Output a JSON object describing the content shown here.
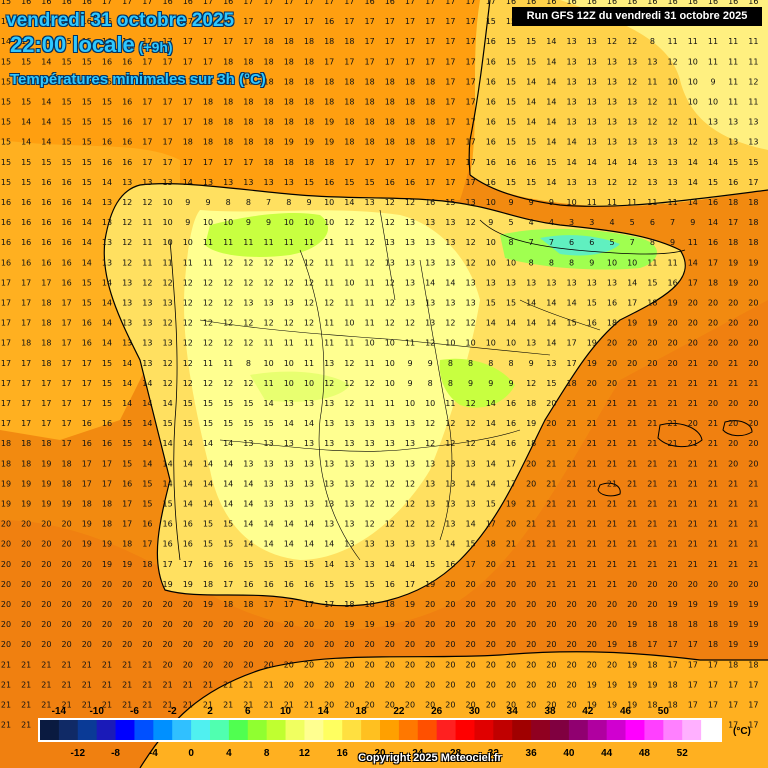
{
  "header": {
    "date_line": "vendredi 31 octobre 2025",
    "time_line": "22:00 locale",
    "time_offset": "(+9h)",
    "subtitle": "Températures minimales sur 3h (°C)",
    "run_info": "Run GFS 12Z du vendredi 31 octobre 2025"
  },
  "legend": {
    "unit": "(°C)",
    "colors": [
      "#0a1a40",
      "#102a66",
      "#0a3a96",
      "#1a1ab8",
      "#0000ff",
      "#0050ff",
      "#0090ff",
      "#30c0ff",
      "#50f0f0",
      "#50ffb0",
      "#50ff50",
      "#90ff30",
      "#c0ff30",
      "#f0ff60",
      "#ffff90",
      "#ffff60",
      "#ffe040",
      "#ffc020",
      "#ffa000",
      "#ff7800",
      "#ff5000",
      "#ff2020",
      "#ff0000",
      "#e00000",
      "#c00000",
      "#a00000",
      "#900020",
      "#800040",
      "#900070",
      "#b000a0",
      "#d000d0",
      "#ff00ff",
      "#ff40ff",
      "#ff80ff",
      "#ffb0ff",
      "#ffffff"
    ],
    "labels_top": [
      "-14",
      "-10",
      "-6",
      "-2",
      "2",
      "6",
      "10",
      "14",
      "18",
      "22",
      "26",
      "30",
      "34",
      "38",
      "42",
      "46",
      "50"
    ],
    "labels_bottom": [
      "-12",
      "-8",
      "-4",
      "0",
      "4",
      "8",
      "12",
      "16",
      "20",
      "24",
      "28",
      "32",
      "36",
      "40",
      "44",
      "48",
      "52"
    ]
  },
  "grid_rows": [
    "15 16 16 16 16 17 17 17 16 16 17 16 17 17 17 17 17 17 16 16 17 17 17 17 17 16 16 16 16 16 16 16 16 16 16 16 16 16",
    "14 15 15 16 16 16 17 17 17 17 16 17 17 17 17 17 16 17 17 17 17 17 17 17 15 15 15 15 14 14 12 11 10 8 11 11 12 11",
    "14 15 15 15 15 16 16 17 17 17 17 17 17 18 18 18 18 18 17 17 17 17 17 17 16 15 15 14 13 13 12 12 8 11 11 11 11 11",
    "15 15 14 15 15 16 16 17 17 17 17 18 18 18 18 18 17 17 17 17 17 17 17 17 16 15 15 14 13 13 13 13 13 12 10 11 11 11",
    "15 15 14 15 15 15 16 16 17 17 18 18 18 18 18 18 18 18 18 18 18 18 17 17 16 15 14 14 13 13 13 12 11 10 10 9 11 12",
    "15 15 14 15 15 15 16 17 17 17 18 18 18 18 18 18 18 18 18 18 18 18 17 17 16 15 14 14 13 13 13 13 12 11 10 10 11 11",
    "15 14 14 15 15 15 16 17 17 17 18 18 18 18 18 18 19 18 18 18 18 18 17 17 16 15 14 14 13 13 13 13 12 12 11 13 13 13",
    "15 14 14 15 15 16 16 17 17 18 18 18 18 18 19 19 19 18 18 18 18 18 17 17 16 15 15 14 14 13 13 13 13 13 12 13 13 13",
    "15 15 15 15 15 16 16 17 17 17 17 17 17 18 18 18 18 17 17 17 17 17 17 17 16 16 16 15 14 14 14 14 13 13 14 14 15 15",
    "15 15 16 16 15 14 13 13 13 14 13 13 13 13 13 15 16 15 15 16 16 17 17 17 16 15 15 14 13 13 12 12 13 13 14 15 16 17",
    "16 16 16 16 14 13 12 12 10 9 9 8 8 7 8 9 10 14 13 12 12 16 15 13 10 9 9 9 10 11 11 11 11 11 14 16 18 18",
    "16 16 16 16 14 13 12 11 10 9 10 10 9 9 10 10 10 12 12 12 13 13 13 12 9 5 4 4 3 3 4 5 6 7 9 14 17 18",
    "16 16 16 16 14 13 12 11 10 10 11 11 11 11 11 11 11 11 12 13 13 13 13 12 10 8 7 7 6 6 5 7 8 9 11 16 18 18",
    "16 16 16 16 14 13 12 11 11 11 11 12 12 12 12 12 11 11 12 13 13 13 13 12 10 10 8 8 8 9 10 10 11 11 14 17 19 19",
    "17 17 17 16 15 14 13 12 12 12 12 12 12 12 12 12 11 10 11 12 13 14 14 13 13 13 13 13 13 13 13 14 15 16 17 18 19 20",
    "17 17 18 17 15 14 13 13 13 12 12 12 13 13 13 12 12 11 11 12 13 13 13 13 15 15 14 14 14 15 16 17 18 19 20 20 20 20",
    "17 17 18 17 16 14 13 13 12 12 12 12 12 12 12 12 11 10 11 12 12 13 12 12 14 14 14 14 15 16 18 19 19 20 20 20 20 20",
    "17 18 18 17 16 14 13 13 13 12 12 12 12 11 11 11 11 11 10 10 11 12 10 10 10 10 13 14 17 19 20 20 20 20 20 20 20 20",
    "17 17 18 17 17 15 14 13 12 12 11 11 8 10 10 11 13 12 11 10 9 9 8 8 8 8 9 13 17 19 20 20 20 20 21 20 21 20",
    "17 17 17 17 17 15 14 14 12 12 12 12 12 11 10 10 12 12 12 10 9 8 8 9 9 9 12 15 18 20 20 21 21 21 21 21 21 21",
    "17 17 17 17 17 15 14 14 14 15 15 15 15 14 13 13 13 12 11 11 10 10 11 12 14 16 18 20 21 21 21 21 21 21 21 20 20 20",
    "17 17 17 17 16 16 15 14 15 15 15 15 15 15 14 14 13 13 13 13 13 12 12 12 14 16 19 20 21 21 21 21 21 21 20 21 20 20",
    "18 18 18 17 16 16 15 14 14 14 14 14 13 13 13 13 13 13 13 13 13 12 12 12 14 16 18 21 21 21 21 21 21 21 21 21 20 20",
    "18 18 19 18 17 17 15 14 14 14 14 14 13 13 13 13 13 13 13 13 13 13 13 13 14 17 20 21 21 21 21 21 21 21 21 21 20 20",
    "19 19 19 18 17 17 16 15 14 14 14 14 14 13 13 13 13 13 12 12 12 13 13 14 14 17 20 21 21 21 21 21 21 21 21 21 21 21",
    "19 19 19 19 18 18 17 15 15 14 14 14 14 13 13 13 13 13 12 12 12 13 13 13 15 19 21 21 21 21 21 21 21 21 21 21 21 21",
    "20 20 20 20 19 18 17 16 16 16 15 15 14 14 14 14 13 13 12 12 12 12 13 14 17 20 21 21 21 21 21 21 21 21 21 21 21 21",
    "20 20 20 20 19 19 18 17 16 16 15 15 14 14 14 14 14 13 13 13 13 13 14 15 18 21 21 21 21 21 21 21 21 21 21 21 21 21",
    "20 20 20 20 20 19 19 18 17 17 16 16 15 15 15 15 14 13 13 14 14 15 16 17 20 21 21 21 21 21 21 21 21 21 21 21 21 21",
    "20 20 20 20 20 20 20 20 19 19 18 17 16 16 16 16 15 15 15 16 17 19 20 20 20 20 20 21 21 21 21 20 20 20 20 20 20 20",
    "20 20 20 20 20 20 20 20 20 20 19 18 18 17 17 17 17 18 18 18 19 20 20 20 20 20 20 20 20 20 20 20 20 19 19 19 19 19",
    "20 20 20 20 20 20 20 20 20 20 20 20 20 20 20 20 20 19 19 19 20 20 20 20 20 20 20 20 20 20 20 19 18 18 18 18 19 19",
    "20 20 20 20 20 20 20 20 20 20 20 20 20 20 20 20 20 20 20 20 20 20 20 20 20 20 20 20 20 20 19 18 17 17 17 18 19 19",
    "21 21 21 21 21 21 21 21 20 20 20 20 20 20 20 20 20 20 20 20 20 20 20 20 20 20 20 20 20 20 20 19 18 17 17 17 18 18",
    "21 21 21 21 21 21 21 21 21 21 21 21 21 21 20 20 20 20 20 20 20 20 20 20 20 20 20 20 20 19 19 19 19 18 17 17 17 17",
    "21 21 21 21 21 21 21 21 21 21 21 21 21 21 21 21 20 20 20 20 20 20 20 20 20 20 20 20 20 19 19 19 18 18 17 17 17 17",
    "21 21 21 21 21 21 21 21 21 21 21 21 21 21 21 21 21 21 21 21 21 20 20 20 20 20 20 20 20 19 19 19 19 18 18 17 17 17"
  ],
  "footer": {
    "copyright": "Copyright 2025 Meteociel.fr"
  }
}
